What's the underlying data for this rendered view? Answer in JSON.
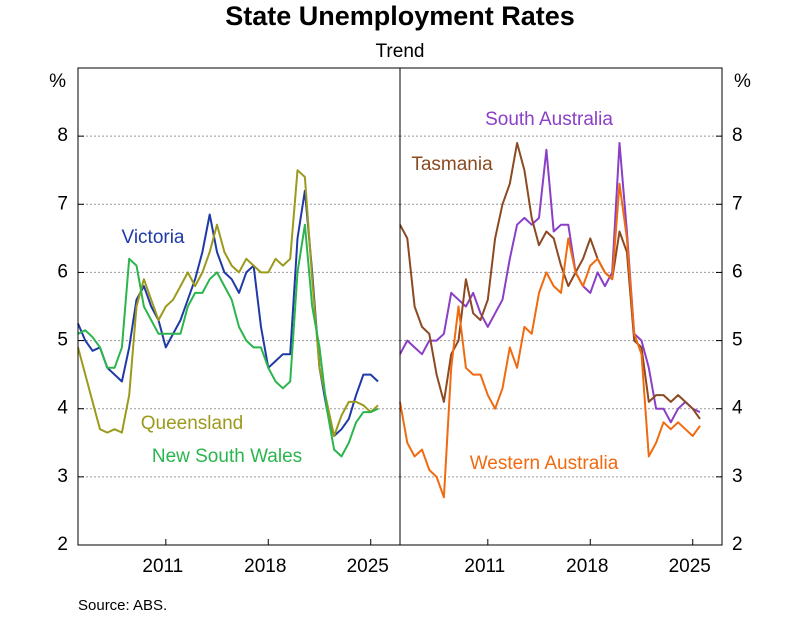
{
  "title": "State Unemployment Rates",
  "subtitle": "Trend",
  "source": "Source:   ABS.",
  "chart_data": [
    {
      "type": "line",
      "y_label": "%",
      "xlim": [
        2005,
        2027
      ],
      "xticks": [
        2011,
        2018,
        2025
      ],
      "ylim": [
        2,
        9
      ],
      "yticks": [
        2,
        3,
        4,
        5,
        6,
        7,
        8
      ],
      "grid": true,
      "tick_side": "left",
      "x": [
        2005,
        2005.5,
        2006,
        2006.5,
        2007,
        2007.5,
        2008,
        2008.5,
        2009,
        2009.5,
        2010,
        2010.5,
        2011,
        2011.5,
        2012,
        2012.5,
        2013,
        2013.5,
        2014,
        2014.5,
        2015,
        2015.5,
        2016,
        2016.5,
        2017,
        2017.5,
        2018,
        2018.5,
        2019,
        2019.5,
        2020,
        2020.5,
        2021,
        2021.5,
        2022,
        2022.5,
        2023,
        2023.5,
        2024,
        2024.5,
        2025,
        2025.5
      ],
      "series": [
        {
          "name": "Victoria",
          "color": "#1f3aa6",
          "values": [
            5.25,
            5.0,
            4.85,
            4.9,
            4.6,
            4.5,
            4.4,
            4.9,
            5.6,
            5.8,
            5.5,
            5.3,
            4.9,
            5.1,
            5.3,
            5.6,
            5.9,
            6.3,
            6.85,
            6.3,
            6.0,
            5.9,
            5.7,
            6.0,
            6.1,
            5.2,
            4.6,
            4.7,
            4.8,
            4.8,
            6.5,
            7.2,
            6.0,
            4.6,
            4.0,
            3.6,
            3.7,
            3.85,
            4.2,
            4.5,
            4.5,
            4.4
          ]
        },
        {
          "name": "Queensland",
          "color": "#9c9a1c",
          "values": [
            4.9,
            4.5,
            4.1,
            3.7,
            3.65,
            3.7,
            3.65,
            4.2,
            5.5,
            5.9,
            5.6,
            5.3,
            5.5,
            5.6,
            5.8,
            6.0,
            5.8,
            6.0,
            6.3,
            6.7,
            6.3,
            6.1,
            6.0,
            6.2,
            6.1,
            6.0,
            6.0,
            6.2,
            6.1,
            6.2,
            7.5,
            7.4,
            5.9,
            4.6,
            4.1,
            3.6,
            3.9,
            4.1,
            4.1,
            4.05,
            3.95,
            4.05
          ]
        },
        {
          "name": "New South Wales",
          "color": "#2bb54d",
          "values": [
            5.1,
            5.15,
            5.05,
            4.9,
            4.6,
            4.6,
            4.9,
            6.2,
            6.1,
            5.5,
            5.3,
            5.1,
            5.1,
            5.1,
            5.1,
            5.5,
            5.7,
            5.7,
            5.9,
            6.0,
            5.8,
            5.6,
            5.2,
            5.0,
            4.9,
            4.9,
            4.6,
            4.4,
            4.3,
            4.4,
            6.0,
            6.7,
            5.5,
            4.9,
            4.0,
            3.4,
            3.3,
            3.5,
            3.8,
            3.95,
            3.95,
            4.0
          ]
        }
      ]
    },
    {
      "type": "line",
      "y_label": "%",
      "xlim": [
        2005,
        2027
      ],
      "xticks": [
        2011,
        2018,
        2025
      ],
      "ylim": [
        2,
        9
      ],
      "yticks": [
        2,
        3,
        4,
        5,
        6,
        7,
        8
      ],
      "grid": true,
      "tick_side": "right",
      "x": [
        2005,
        2005.5,
        2006,
        2006.5,
        2007,
        2007.5,
        2008,
        2008.5,
        2009,
        2009.5,
        2010,
        2010.5,
        2011,
        2011.5,
        2012,
        2012.5,
        2013,
        2013.5,
        2014,
        2014.5,
        2015,
        2015.5,
        2016,
        2016.5,
        2017,
        2017.5,
        2018,
        2018.5,
        2019,
        2019.5,
        2020,
        2020.5,
        2021,
        2021.5,
        2022,
        2022.5,
        2023,
        2023.5,
        2024,
        2024.5,
        2025,
        2025.5
      ],
      "series": [
        {
          "name": "South Australia",
          "color": "#8a3fc6",
          "values": [
            4.8,
            5.0,
            4.9,
            4.8,
            5.0,
            5.0,
            5.1,
            5.7,
            5.6,
            5.5,
            5.7,
            5.4,
            5.2,
            5.4,
            5.6,
            6.2,
            6.7,
            6.8,
            6.7,
            6.8,
            7.8,
            6.6,
            6.7,
            6.7,
            6.0,
            5.8,
            5.7,
            6.0,
            5.8,
            6.0,
            7.9,
            6.6,
            5.1,
            5.0,
            4.6,
            4.0,
            4.0,
            3.8,
            4.0,
            4.1,
            4.0,
            3.95
          ]
        },
        {
          "name": "Tasmania",
          "color": "#8b4a22",
          "values": [
            6.7,
            6.5,
            5.5,
            5.2,
            5.1,
            4.5,
            4.1,
            4.8,
            5.0,
            5.9,
            5.4,
            5.3,
            5.6,
            6.5,
            7.0,
            7.3,
            7.9,
            7.5,
            6.8,
            6.4,
            6.6,
            6.5,
            6.1,
            5.8,
            6.0,
            6.2,
            6.5,
            6.2,
            6.0,
            5.9,
            6.6,
            6.3,
            5.0,
            4.9,
            4.1,
            4.2,
            4.2,
            4.1,
            4.2,
            4.1,
            4.0,
            3.85
          ]
        },
        {
          "name": "Western Australia",
          "color": "#f06a10",
          "values": [
            4.1,
            3.5,
            3.3,
            3.4,
            3.1,
            3.0,
            2.7,
            4.6,
            5.5,
            4.6,
            4.5,
            4.5,
            4.2,
            4.0,
            4.3,
            4.9,
            4.6,
            5.2,
            5.1,
            5.7,
            6.0,
            5.8,
            5.7,
            6.5,
            6.0,
            5.8,
            6.1,
            6.2,
            6.0,
            5.9,
            7.3,
            6.5,
            5.1,
            4.8,
            3.3,
            3.5,
            3.8,
            3.7,
            3.8,
            3.7,
            3.6,
            3.75
          ]
        }
      ]
    }
  ]
}
